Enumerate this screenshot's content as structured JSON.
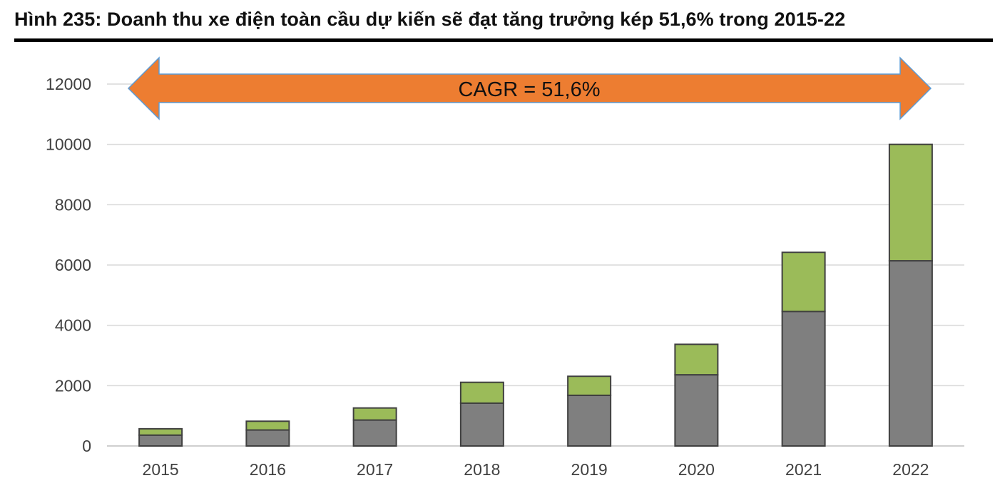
{
  "figure": {
    "title": "Hình 235:  Doanh thu xe điện toàn cầu dự kiến sẽ đạt tăng trưởng kép 51,6% trong 2015-22"
  },
  "chart_data": {
    "type": "bar",
    "stacked": true,
    "categories": [
      "2015",
      "2016",
      "2017",
      "2018",
      "2019",
      "2020",
      "2021",
      "2022"
    ],
    "series": [
      {
        "values": [
          360,
          530,
          860,
          1420,
          1680,
          2360,
          4460,
          6140
        ],
        "color": "#7f7f7f"
      },
      {
        "values": [
          210,
          290,
          400,
          690,
          630,
          1010,
          1960,
          3860
        ],
        "color": "#9bbb59"
      }
    ],
    "ylim": [
      0,
      12000
    ],
    "yticks": [
      0,
      2000,
      4000,
      6000,
      8000,
      10000,
      12000
    ],
    "ytick_labels": [
      "0",
      "2000",
      "4000",
      "6000",
      "8000",
      "10000",
      "12000"
    ],
    "grid": true,
    "annotation": {
      "text": "CAGR = 51,6%",
      "fill": "#ed7d31",
      "stroke": "#5b9bd5"
    }
  }
}
